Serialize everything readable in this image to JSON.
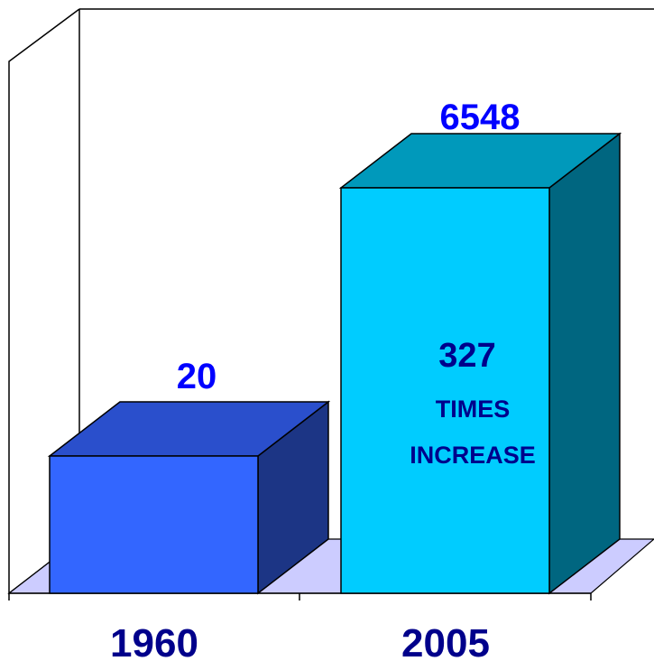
{
  "chart_data": {
    "type": "bar",
    "three_d": true,
    "categories": [
      "1960",
      "2005"
    ],
    "values": [
      20,
      6548
    ],
    "data_labels": [
      "20",
      "6548"
    ],
    "annotation": {
      "line1": "327",
      "line2": "TIMES",
      "line3": "INCREASE"
    },
    "grid": false,
    "legend": "none"
  },
  "colors": {
    "bar_1960_front": "#3366ff",
    "bar_1960_top": "#2a4fcc",
    "bar_1960_side": "#1c3585",
    "bar_2005_front": "#00ccff",
    "bar_2005_top": "#0099bb",
    "bar_2005_side": "#006680",
    "floor": "#ccccff",
    "value_label": "#0000ff",
    "category_label": "#00008b"
  }
}
